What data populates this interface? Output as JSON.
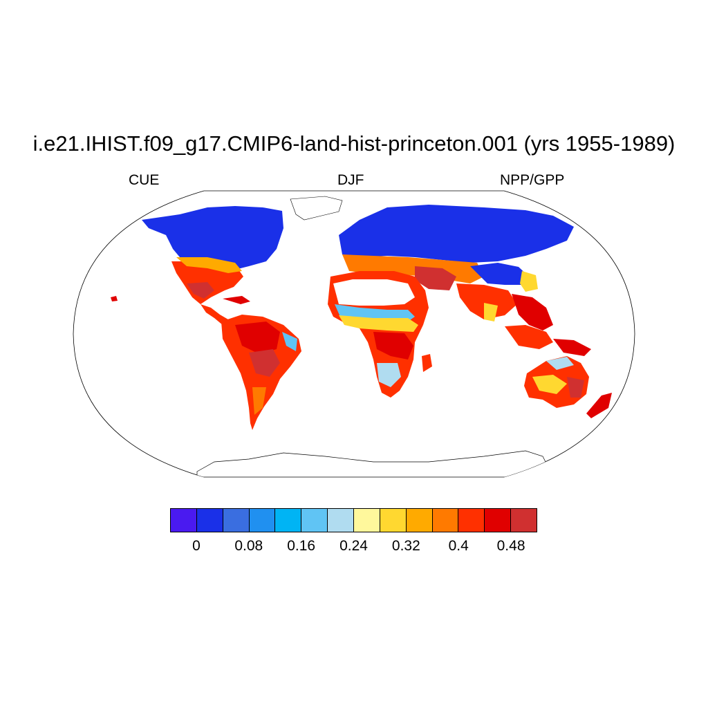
{
  "title": "i.e21.IHIST.f09_g17.CMIP6-land-hist-princeton.001 (yrs 1955-1989)",
  "subtitles": {
    "left": "CUE",
    "center": "DJF",
    "right": "NPP/GPP"
  },
  "colorbar": {
    "colors": [
      "#4a1af0",
      "#1a30e8",
      "#3a6ee0",
      "#2090f0",
      "#00b4f4",
      "#60c4f4",
      "#b0dcf0",
      "#fff89c",
      "#ffd830",
      "#ffaa00",
      "#ff7a00",
      "#ff3000",
      "#e00000",
      "#d03030"
    ],
    "labels": [
      "0",
      "0.08",
      "0.16",
      "0.24",
      "0.32",
      "0.4",
      "0.48"
    ]
  }
}
